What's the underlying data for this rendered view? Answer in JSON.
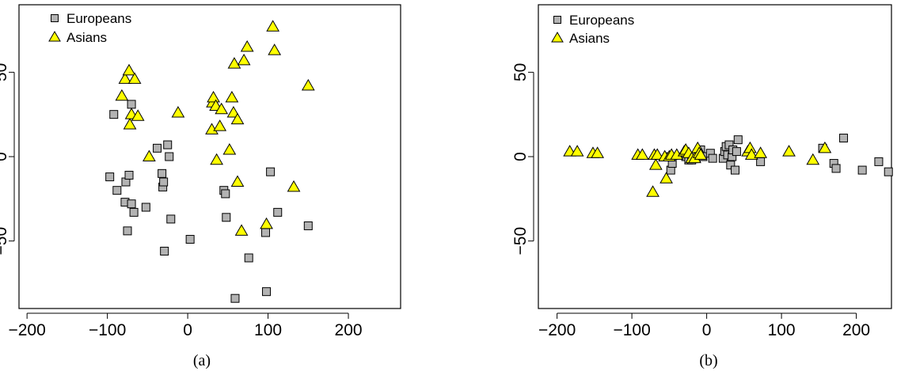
{
  "colors": {
    "europeans": "#b3b3b3",
    "asians": "#ffff00",
    "stroke": "#000000"
  },
  "legend": {
    "europeans": {
      "label": "Europeans",
      "icon": "square-marker"
    },
    "asians": {
      "label": "Asians",
      "icon": "triangle-marker"
    }
  },
  "chart_data": [
    {
      "type": "scatter",
      "caption": "(a)",
      "xlim": [
        -210,
        265
      ],
      "ylim": [
        -90,
        90
      ],
      "xticks": [
        -200,
        -100,
        0,
        100,
        200
      ],
      "xtick_labels": [
        "−200",
        "−100",
        "0",
        "100",
        "200"
      ],
      "yticks": [
        -50,
        0,
        50
      ],
      "ytick_labels": [
        "−50",
        "0",
        "50"
      ],
      "grid": false,
      "legend_position": "top-left",
      "series": [
        {
          "name": "Europeans",
          "marker": "square",
          "points": [
            [
              -97,
              -12
            ],
            [
              -92,
              25
            ],
            [
              -88,
              -20
            ],
            [
              -78,
              -27
            ],
            [
              -77,
              -15
            ],
            [
              -75,
              -44
            ],
            [
              -73,
              -11
            ],
            [
              -70,
              -28
            ],
            [
              -70,
              31
            ],
            [
              -67,
              -33
            ],
            [
              -52,
              -30
            ],
            [
              -38,
              5
            ],
            [
              -32,
              -10
            ],
            [
              -31,
              -18
            ],
            [
              -30,
              -15
            ],
            [
              -29,
              -56
            ],
            [
              -25,
              7
            ],
            [
              -23,
              0
            ],
            [
              -21,
              -37
            ],
            [
              3,
              -49
            ],
            [
              45,
              -20
            ],
            [
              47,
              -22
            ],
            [
              48,
              -36
            ],
            [
              59,
              -84
            ],
            [
              76,
              -60
            ],
            [
              97,
              -45
            ],
            [
              98,
              -80
            ],
            [
              103,
              -9
            ],
            [
              112,
              -33
            ],
            [
              150,
              -41
            ]
          ]
        },
        {
          "name": "Asians",
          "marker": "triangle",
          "points": [
            [
              -82,
              36
            ],
            [
              -78,
              46
            ],
            [
              -73,
              51
            ],
            [
              -72,
              19
            ],
            [
              -70,
              25
            ],
            [
              -66,
              46
            ],
            [
              -62,
              24
            ],
            [
              -48,
              0
            ],
            [
              -12,
              26
            ],
            [
              30,
              16
            ],
            [
              31,
              32
            ],
            [
              32,
              35
            ],
            [
              35,
              30
            ],
            [
              36,
              -2
            ],
            [
              40,
              18
            ],
            [
              42,
              28
            ],
            [
              52,
              4
            ],
            [
              55,
              35
            ],
            [
              57,
              26
            ],
            [
              58,
              55
            ],
            [
              62,
              22
            ],
            [
              62,
              -15
            ],
            [
              67,
              -44
            ],
            [
              70,
              57
            ],
            [
              74,
              65
            ],
            [
              98,
              -40
            ],
            [
              106,
              77
            ],
            [
              108,
              63
            ],
            [
              132,
              -18
            ],
            [
              150,
              42
            ]
          ]
        }
      ]
    },
    {
      "type": "scatter",
      "caption": "(b)",
      "xlim": [
        -225,
        247
      ],
      "ylim": [
        -90,
        90
      ],
      "xticks": [
        -200,
        -100,
        0,
        100,
        200
      ],
      "xtick_labels": [
        "−200",
        "−100",
        "0",
        "100",
        "200"
      ],
      "yticks": [
        -50,
        0,
        50
      ],
      "ytick_labels": [
        "−50",
        "0",
        "50"
      ],
      "grid": false,
      "legend_position": "top-left",
      "series": [
        {
          "name": "Europeans",
          "marker": "square",
          "points": [
            [
              -52,
              0
            ],
            [
              -48,
              -8
            ],
            [
              -46,
              -4
            ],
            [
              -28,
              0
            ],
            [
              -24,
              -2
            ],
            [
              -20,
              -2
            ],
            [
              -14,
              -1
            ],
            [
              -8,
              4
            ],
            [
              -5,
              0
            ],
            [
              5,
              2
            ],
            [
              8,
              -1
            ],
            [
              22,
              -1
            ],
            [
              24,
              3
            ],
            [
              26,
              6
            ],
            [
              28,
              1
            ],
            [
              30,
              7
            ],
            [
              32,
              -5
            ],
            [
              34,
              0
            ],
            [
              35,
              4
            ],
            [
              38,
              -8
            ],
            [
              40,
              3
            ],
            [
              42,
              10
            ],
            [
              72,
              -3
            ],
            [
              155,
              5
            ],
            [
              170,
              -4
            ],
            [
              173,
              -7
            ],
            [
              183,
              11
            ],
            [
              208,
              -8
            ],
            [
              230,
              -3
            ],
            [
              243,
              -9
            ]
          ]
        },
        {
          "name": "Asians",
          "marker": "triangle",
          "points": [
            [
              -183,
              3
            ],
            [
              -173,
              3
            ],
            [
              -152,
              2
            ],
            [
              -146,
              2
            ],
            [
              -92,
              1
            ],
            [
              -86,
              1
            ],
            [
              -72,
              -21
            ],
            [
              -70,
              1
            ],
            [
              -68,
              -5
            ],
            [
              -66,
              1
            ],
            [
              -56,
              0
            ],
            [
              -54,
              -13
            ],
            [
              -50,
              0
            ],
            [
              -47,
              1
            ],
            [
              -40,
              1
            ],
            [
              -30,
              3
            ],
            [
              -28,
              4
            ],
            [
              -24,
              2
            ],
            [
              -20,
              -1
            ],
            [
              -16,
              -1
            ],
            [
              -12,
              5
            ],
            [
              -10,
              2
            ],
            [
              -8,
              1
            ],
            [
              55,
              3
            ],
            [
              58,
              5
            ],
            [
              60,
              1
            ],
            [
              72,
              2
            ],
            [
              110,
              3
            ],
            [
              142,
              -2
            ],
            [
              158,
              5
            ]
          ]
        }
      ]
    }
  ]
}
